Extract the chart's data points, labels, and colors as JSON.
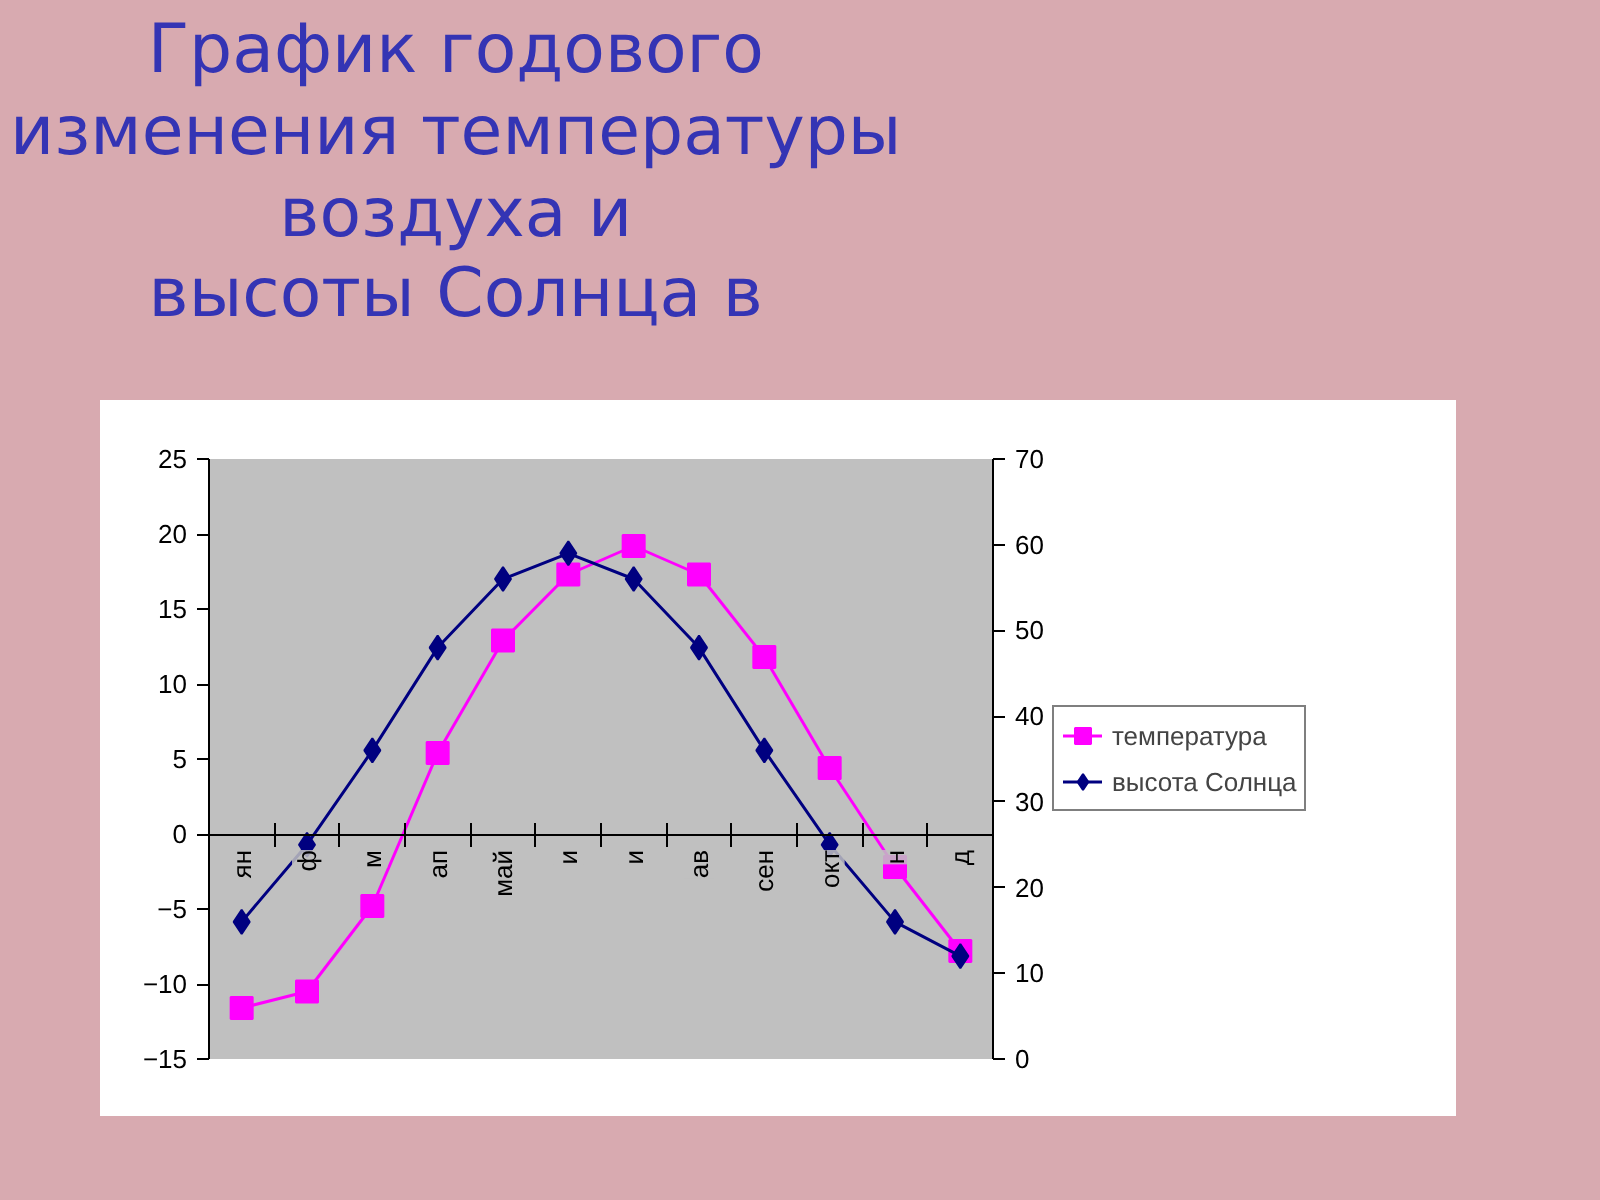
{
  "chart_data": {
    "type": "line",
    "title": "График годового\nизменения температуры\nвоздуха и\nвысоты Солнца в",
    "categories": [
      "ян",
      "ф",
      "м",
      "ап",
      "май",
      "и",
      "и",
      "ав",
      "сен",
      "окт",
      "н",
      "д"
    ],
    "series": [
      {
        "name": "температура",
        "color": "#ff00ff",
        "marker": "square",
        "values": [
          -11.6,
          -10.5,
          -4.8,
          5.4,
          12.9,
          17.3,
          19.2,
          17.3,
          11.8,
          4.4,
          -2.2,
          -7.8
        ]
      },
      {
        "name": "высота Солнца",
        "color": "#000080",
        "marker": "diamond",
        "axis": "y2",
        "values": [
          16,
          25,
          36,
          48,
          56,
          59,
          56,
          48,
          36,
          25,
          16,
          12
        ]
      }
    ],
    "ylim": [
      -15,
      25
    ],
    "yticks": [
      -15,
      -10,
      -5,
      0,
      5,
      10,
      15,
      20,
      25
    ],
    "y2lim": [
      0,
      70
    ],
    "y2ticks": [
      0,
      10,
      20,
      30,
      40,
      50,
      60,
      70
    ],
    "grid": false,
    "legend": "right",
    "line_style": "solid"
  }
}
